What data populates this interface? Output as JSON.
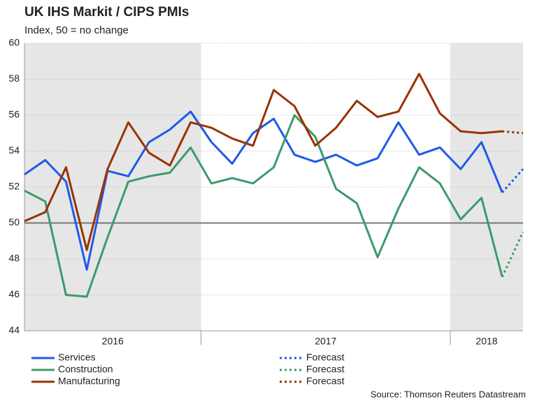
{
  "chart_data": {
    "type": "line",
    "title": "UK IHS Markit / CIPS PMIs",
    "subtitle": "Index, 50 = no change",
    "source": "Source: Thomson Reuters Datastream",
    "categories": [
      null,
      null,
      null,
      null,
      null,
      null,
      null,
      null,
      null,
      null,
      null,
      null,
      null,
      null,
      null,
      null,
      null,
      null,
      null,
      null,
      null,
      null,
      null,
      null,
      null
    ],
    "year_bands": [
      {
        "label": "2016",
        "range": [
          0,
          8.5
        ],
        "shaded": true
      },
      {
        "label": "2017",
        "range": [
          8.5,
          20.5
        ],
        "shaded": false
      },
      {
        "label": "2018",
        "range": [
          20.5,
          24
        ],
        "shaded": true
      }
    ],
    "xlim": [
      0,
      24
    ],
    "ylim": [
      44,
      60
    ],
    "yticks": [
      44,
      46,
      48,
      50,
      52,
      54,
      56,
      58,
      60
    ],
    "grid": true,
    "reference_line": 50,
    "series": [
      {
        "name": "Services",
        "color": "#1f5ae8",
        "dashed": false,
        "values": [
          52.7,
          53.5,
          52.3,
          47.4,
          52.9,
          52.6,
          54.5,
          55.2,
          56.2,
          54.5,
          53.3,
          55.0,
          55.8,
          53.8,
          53.4,
          53.8,
          53.2,
          53.6,
          55.6,
          53.8,
          54.2,
          53.0,
          54.5,
          51.7,
          null
        ]
      },
      {
        "name": "Construction",
        "color": "#3c9a6c",
        "dashed": false,
        "values": [
          51.8,
          51.2,
          46.0,
          45.9,
          49.2,
          52.3,
          52.6,
          52.8,
          54.2,
          52.2,
          52.5,
          52.2,
          53.1,
          56.0,
          54.8,
          51.9,
          51.1,
          48.1,
          50.8,
          53.1,
          52.2,
          50.2,
          51.4,
          47.0,
          null
        ]
      },
      {
        "name": "Manufacturing",
        "color": "#993300",
        "dashed": false,
        "values": [
          50.1,
          50.6,
          53.1,
          48.5,
          53.0,
          55.6,
          53.9,
          53.2,
          55.6,
          55.3,
          54.7,
          54.3,
          57.4,
          56.5,
          54.3,
          55.3,
          56.8,
          55.9,
          56.2,
          58.3,
          56.1,
          55.1,
          55.0,
          55.1,
          null
        ]
      },
      {
        "name": "Forecast",
        "color": "#1f5ae8",
        "dashed": true,
        "values": [
          null,
          null,
          null,
          null,
          null,
          null,
          null,
          null,
          null,
          null,
          null,
          null,
          null,
          null,
          null,
          null,
          null,
          null,
          null,
          null,
          null,
          null,
          null,
          51.7,
          53.0
        ]
      },
      {
        "name": "Forecast",
        "color": "#3c9a6c",
        "dashed": true,
        "values": [
          null,
          null,
          null,
          null,
          null,
          null,
          null,
          null,
          null,
          null,
          null,
          null,
          null,
          null,
          null,
          null,
          null,
          null,
          null,
          null,
          null,
          null,
          null,
          47.0,
          49.5
        ]
      },
      {
        "name": "Forecast",
        "color": "#993300",
        "dashed": true,
        "values": [
          null,
          null,
          null,
          null,
          null,
          null,
          null,
          null,
          null,
          null,
          null,
          null,
          null,
          null,
          null,
          null,
          null,
          null,
          null,
          null,
          null,
          null,
          null,
          55.1,
          55.0
        ]
      }
    ]
  }
}
